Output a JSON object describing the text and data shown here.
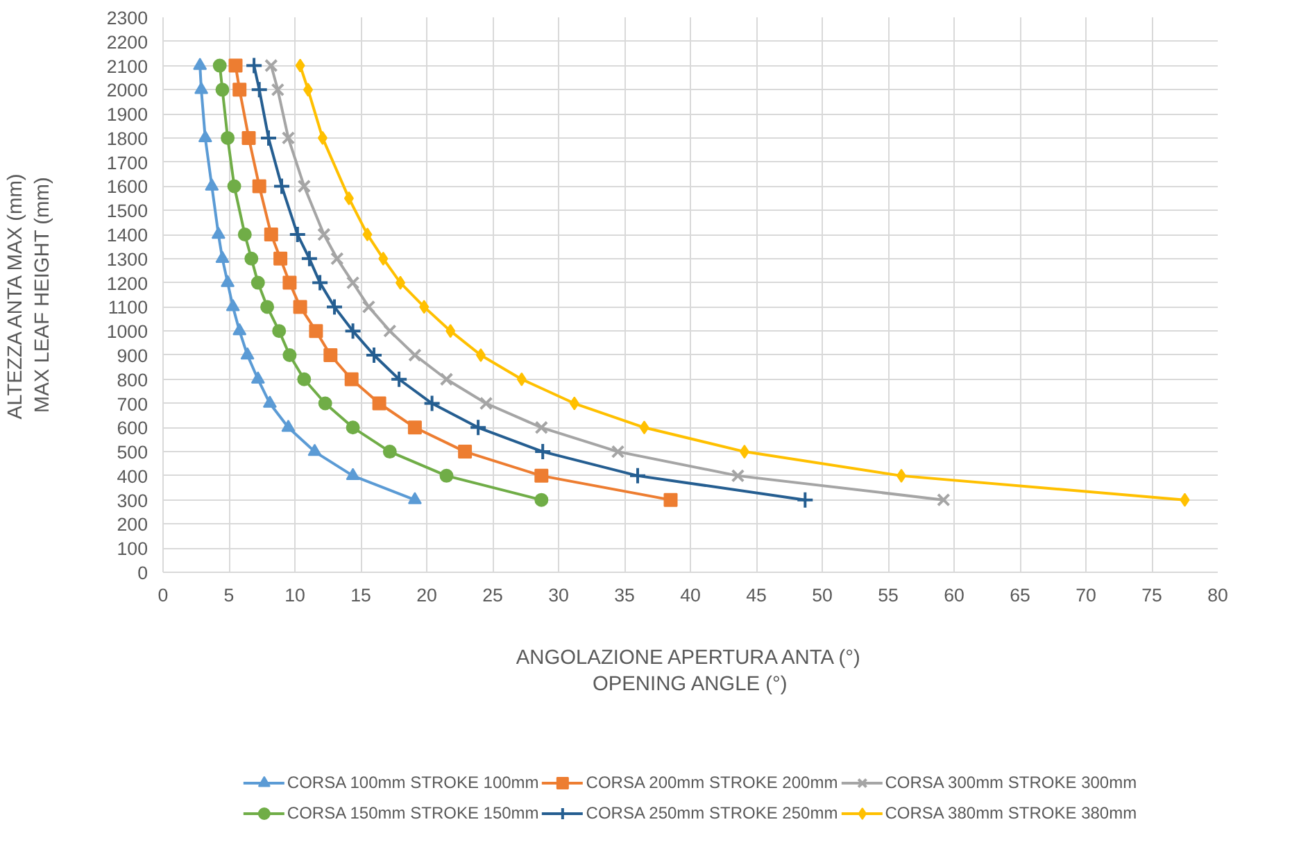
{
  "chart_data": {
    "type": "line",
    "xlabel": "ANGOLAZIONE APERTURA ANTA (°)\nOPENING ANGLE (°)",
    "ylabel": "ALTEZZA ANTA MAX (mm)\nMAX LEAF HEIGHT (mm)",
    "xlim": [
      0,
      80
    ],
    "xticks": [
      0,
      5,
      10,
      15,
      20,
      25,
      30,
      35,
      40,
      45,
      50,
      55,
      60,
      65,
      70,
      75,
      80
    ],
    "ylim": [
      0,
      2300
    ],
    "yticks": [
      0,
      100,
      200,
      300,
      400,
      500,
      600,
      700,
      800,
      900,
      1000,
      1100,
      1200,
      1300,
      1400,
      1500,
      1600,
      1700,
      1800,
      1900,
      2000,
      2100,
      2200,
      2300
    ],
    "grid": true,
    "legend": "bottom",
    "series": [
      {
        "name": "CORSA 100mm STROKE 100mm",
        "color": "#5b9bd5",
        "marker": "triangle",
        "x": [
          2.8,
          2.9,
          3.2,
          3.7,
          4.2,
          4.5,
          4.9,
          5.3,
          5.8,
          6.4,
          7.2,
          8.1,
          9.5,
          11.5,
          14.4,
          19.1
        ],
        "values": [
          2100,
          2000,
          1800,
          1600,
          1400,
          1300,
          1200,
          1100,
          1000,
          900,
          800,
          700,
          600,
          500,
          400,
          300
        ]
      },
      {
        "name": "CORSA 150mm STROKE 150mm",
        "color": "#70ad47",
        "marker": "circle",
        "x": [
          4.3,
          4.5,
          4.9,
          5.4,
          6.2,
          6.7,
          7.2,
          7.9,
          8.8,
          9.6,
          10.7,
          12.3,
          14.4,
          17.2,
          21.5,
          28.7
        ],
        "values": [
          2100,
          2000,
          1800,
          1600,
          1400,
          1300,
          1200,
          1100,
          1000,
          900,
          800,
          700,
          600,
          500,
          400,
          300
        ]
      },
      {
        "name": "CORSA 200mm STROKE 200mm",
        "color": "#ed7d31",
        "marker": "square",
        "x": [
          5.5,
          5.8,
          6.5,
          7.3,
          8.2,
          8.9,
          9.6,
          10.4,
          11.6,
          12.7,
          14.3,
          16.4,
          19.1,
          22.9,
          28.7,
          38.5
        ],
        "values": [
          2100,
          2000,
          1800,
          1600,
          1400,
          1300,
          1200,
          1100,
          1000,
          900,
          800,
          700,
          600,
          500,
          400,
          300
        ]
      },
      {
        "name": "CORSA 250mm STROKE 250mm",
        "color": "#255e91",
        "marker": "cross",
        "x": [
          6.9,
          7.3,
          8.0,
          9.0,
          10.2,
          11.1,
          11.9,
          13.0,
          14.4,
          16.0,
          17.9,
          20.4,
          23.9,
          28.8,
          36.0,
          48.7
        ],
        "values": [
          2100,
          2000,
          1800,
          1600,
          1400,
          1300,
          1200,
          1100,
          1000,
          900,
          800,
          700,
          600,
          500,
          400,
          300
        ]
      },
      {
        "name": "CORSA 300mm STROKE 300mm",
        "color": "#a5a5a5",
        "marker": "x",
        "x": [
          8.2,
          8.7,
          9.5,
          10.7,
          12.2,
          13.2,
          14.4,
          15.6,
          17.2,
          19.1,
          21.5,
          24.5,
          28.7,
          34.5,
          43.6,
          59.2
        ],
        "values": [
          2100,
          2000,
          1800,
          1600,
          1400,
          1300,
          1200,
          1100,
          1000,
          900,
          800,
          700,
          600,
          500,
          400,
          300
        ]
      },
      {
        "name": "CORSA 380mm STROKE 380mm",
        "color": "#ffc000",
        "marker": "diamond",
        "x": [
          10.4,
          11.0,
          12.1,
          14.1,
          15.5,
          16.7,
          18.0,
          19.8,
          21.8,
          24.1,
          27.2,
          31.2,
          36.5,
          44.1,
          56.0,
          77.5
        ],
        "values": [
          2100,
          2000,
          1800,
          1550,
          1400,
          1300,
          1200,
          1100,
          1000,
          900,
          800,
          700,
          600,
          500,
          400,
          300
        ]
      }
    ]
  }
}
